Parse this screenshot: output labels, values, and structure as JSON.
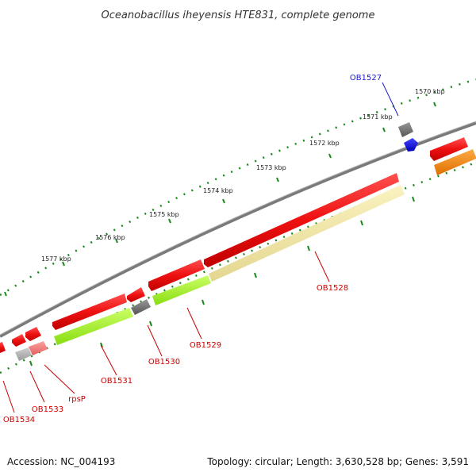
{
  "title": "Oceanobacillus iheyensis HTE831, complete genome",
  "footer": {
    "accession": "Accession: NC_004193",
    "summary": "Topology: circular; Length: 3,630,528 bp; Genes: 3,591"
  },
  "ticks": [
    "1570 kbp",
    "1571 kbp",
    "1572 kbp",
    "1573 kbp",
    "1574 kbp",
    "1575 kbp",
    "1576 kbp",
    "1577 kbp"
  ],
  "genes": [
    {
      "id": "ob1527",
      "label": "OB1527",
      "color": "#1a1acc"
    },
    {
      "id": "ob1528",
      "label": "OB1528",
      "color": "#cc0000"
    },
    {
      "id": "ob1529",
      "label": "OB1529",
      "color": "#cc0000"
    },
    {
      "id": "ob1530",
      "label": "OB1530",
      "color": "#cc0000"
    },
    {
      "id": "ob1531",
      "label": "OB1531",
      "color": "#cc0000"
    },
    {
      "id": "rpsp",
      "label": "rpsP",
      "color": "#cc0000"
    },
    {
      "id": "ob1533",
      "label": "OB1533",
      "color": "#cc0000"
    },
    {
      "id": "ob1534",
      "label": "OB1534",
      "color": "#cc0000"
    }
  ],
  "colors": {
    "backbone": "#808080",
    "cds_red": "#ee1111",
    "rna_gray": "#666666",
    "light_gray": "#aaaaaa",
    "pink": "#f07878",
    "blue": "#1111dd",
    "orange": "#ff8800",
    "lime": "#99ee22",
    "khaki": "#f0e6a0",
    "tick_green": "#1a8a1a"
  }
}
